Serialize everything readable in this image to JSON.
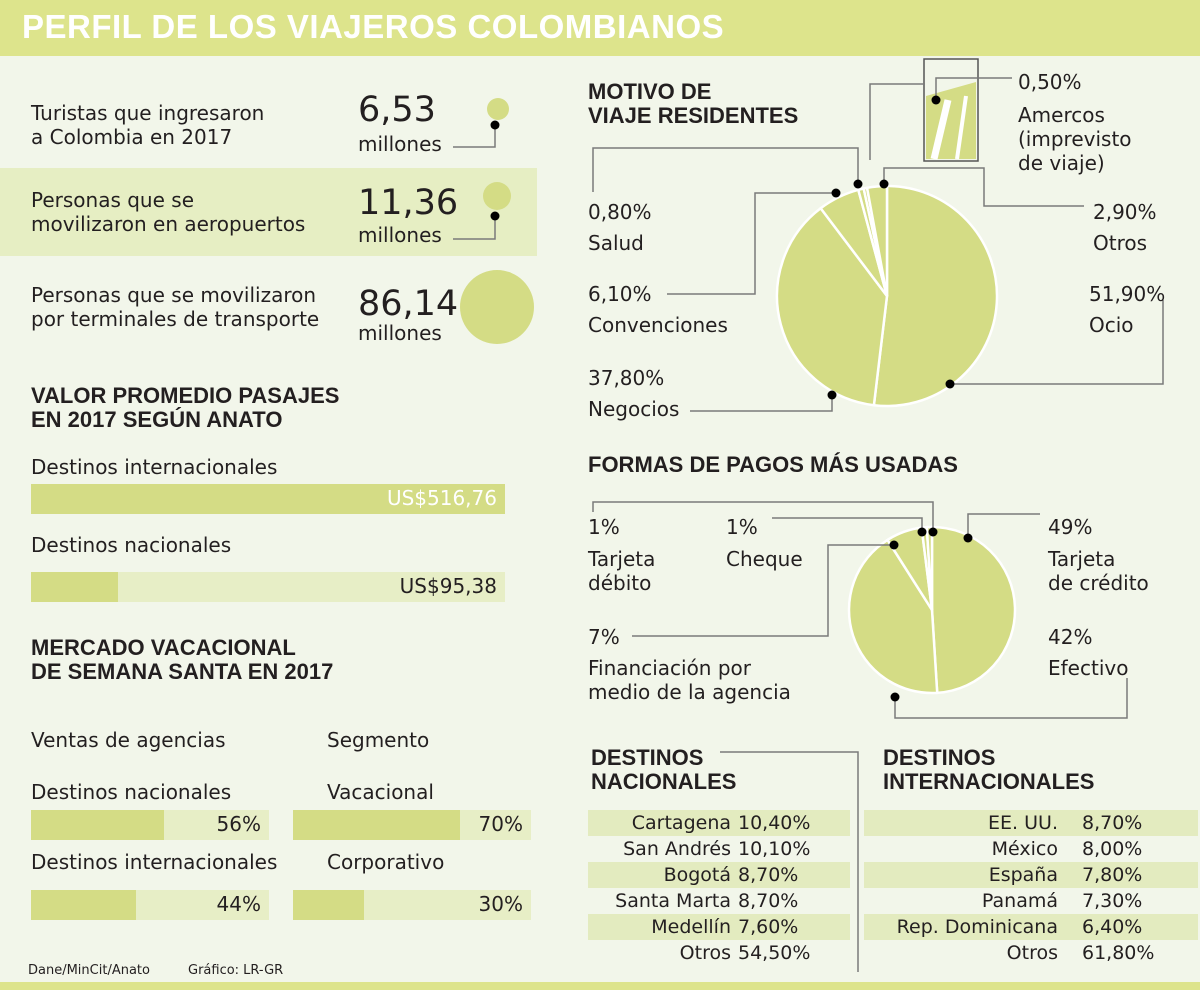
{
  "title": "PERFIL DE LOS VIAJEROS COLOMBIANOS",
  "stats": [
    {
      "label_line1": "Turistas que ingresaron",
      "label_line2": "a Colombia en 2017",
      "value": "6,53",
      "unit": "millones",
      "amount": 6.53
    },
    {
      "label_line1": "Personas que se",
      "label_line2": "movilizaron en aeropuertos",
      "value": "11,36",
      "unit": "millones",
      "amount": 11.36
    },
    {
      "label_line1": "Personas que se movilizaron",
      "label_line2": "por terminales de transporte",
      "value": "86,14",
      "unit": "millones",
      "amount": 86.14
    }
  ],
  "fares": {
    "title_line1": "VALOR PROMEDIO PASAJES",
    "title_line2": "EN 2017 SEGÚN ANATO",
    "items": [
      {
        "label": "Destinos internacionales",
        "value_text": "US$516,76",
        "value": 516.76
      },
      {
        "label": "Destinos nacionales",
        "value_text": "US$95,38",
        "value": 95.38
      }
    ]
  },
  "holy_week": {
    "title_line1": "MERCADO VACACIONAL",
    "title_line2": "DE SEMANA SANTA EN 2017",
    "sales": {
      "heading": "Ventas de agencias",
      "items": [
        {
          "label": "Destinos nacionales",
          "value_text": "56%",
          "value": 56
        },
        {
          "label": "Destinos internacionales",
          "value_text": "44%",
          "value": 44
        }
      ]
    },
    "segment": {
      "heading": "Segmento",
      "items": [
        {
          "label": "Vacacional",
          "value_text": "70%",
          "value": 70
        },
        {
          "label": "Corporativo",
          "value_text": "30%",
          "value": 30
        }
      ]
    }
  },
  "source": "Dane/MinCit/Anato",
  "credit": "Gráfico: LR-GR",
  "chart_data": [
    {
      "type": "pie",
      "title": "MOTIVO DE VIAJE RESIDENTES",
      "title_line1": "MOTIVO DE",
      "title_line2": "VIAJE RESIDENTES",
      "slices": [
        {
          "label": "Ocio",
          "pct_text": "51,90%",
          "value": 51.9
        },
        {
          "label": "Negocios",
          "pct_text": "37,80%",
          "value": 37.8
        },
        {
          "label": "Convenciones",
          "pct_text": "6,10%",
          "value": 6.1
        },
        {
          "label": "Salud",
          "pct_text": "0,80%",
          "value": 0.8
        },
        {
          "label": "Amercos (imprevisto de viaje)",
          "label_lines": [
            "Amercos",
            "(imprevisto",
            "de viaje)"
          ],
          "pct_text": "0,50%",
          "value": 0.5
        },
        {
          "label": "Otros",
          "pct_text": "2,90%",
          "value": 2.9
        }
      ]
    },
    {
      "type": "pie",
      "title": "FORMAS DE PAGOS MÁS USADAS",
      "slices": [
        {
          "label": "Tarjeta de crédito",
          "label_lines": [
            "Tarjeta",
            "de crédito"
          ],
          "pct_text": "49%",
          "value": 49
        },
        {
          "label": "Efectivo",
          "label_lines": [
            "Efectivo"
          ],
          "pct_text": "42%",
          "value": 42
        },
        {
          "label": "Financiación por medio de la agencia",
          "label_lines": [
            "Financiación por",
            "medio de la agencia"
          ],
          "pct_text": "7%",
          "value": 7
        },
        {
          "label": "Tarjeta débito",
          "label_lines": [
            "Tarjeta",
            "débito"
          ],
          "pct_text": "1%",
          "value": 1
        },
        {
          "label": "Cheque",
          "label_lines": [
            "Cheque"
          ],
          "pct_text": "1%",
          "value": 1
        }
      ]
    },
    {
      "type": "table",
      "title": "DESTINOS NACIONALES",
      "title_line1": "DESTINOS",
      "title_line2": "NACIONALES",
      "rows": [
        {
          "name": "Cartagena",
          "value_text": "10,40%",
          "value": 10.4
        },
        {
          "name": "San Andrés",
          "value_text": "10,10%",
          "value": 10.1
        },
        {
          "name": "Bogotá",
          "value_text": "8,70%",
          "value": 8.7
        },
        {
          "name": "Santa Marta",
          "value_text": "8,70%",
          "value": 8.7
        },
        {
          "name": "Medellín",
          "value_text": "7,60%",
          "value": 7.6
        },
        {
          "name": "Otros",
          "value_text": "54,50%",
          "value": 54.5
        }
      ]
    },
    {
      "type": "table",
      "title": "DESTINOS INTERNACIONALES",
      "title_line1": "DESTINOS",
      "title_line2": "INTERNACIONALES",
      "rows": [
        {
          "name": "EE. UU.",
          "value_text": "8,70%",
          "value": 8.7
        },
        {
          "name": "México",
          "value_text": "8,00%",
          "value": 8.0
        },
        {
          "name": "España",
          "value_text": "7,80%",
          "value": 7.8
        },
        {
          "name": "Panamá",
          "value_text": "7,30%",
          "value": 7.3
        },
        {
          "name": "Rep. Dominicana",
          "value_text": "6,40%",
          "value": 6.4
        },
        {
          "name": "Otros",
          "value_text": "61,80%",
          "value": 61.8
        }
      ]
    }
  ],
  "colors": {
    "accent": "#d4dc85",
    "header": "#dde48c",
    "band": "#e6eec3",
    "background": "#f2f6ea",
    "ink": "#231f20"
  }
}
